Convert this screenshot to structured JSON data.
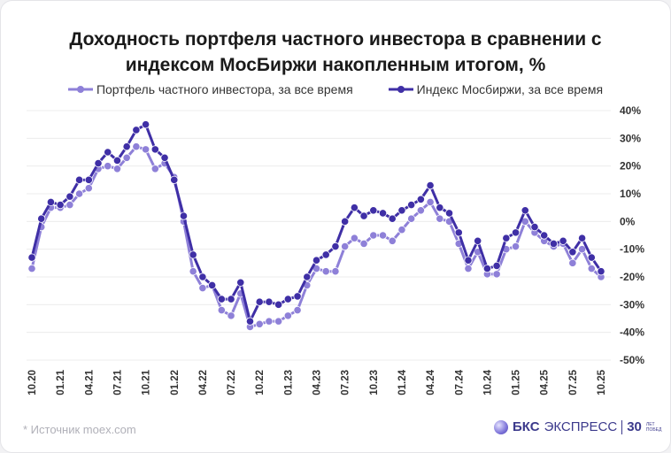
{
  "title_line1": "Доходность портфеля частного инвестора в сравнении с",
  "title_line2": "индексом МосБиржи накопленным итогом, %",
  "footer": {
    "source": "*  Источник moex.com",
    "logo_brand": "БКС",
    "logo_name": "ЭКСПРЕСС",
    "logo_30": "30",
    "logo_sub1": "ЛЕТ",
    "logo_sub2": "ПОБЕД"
  },
  "chart_data": {
    "type": "line",
    "title": "Доходность портфеля частного инвестора в сравнении с индексом МосБиржи накопленным итогом, %",
    "ylim": [
      -50,
      40
    ],
    "yticks": [
      "40%",
      "30%",
      "20%",
      "10%",
      "0%",
      "-10%",
      "-20%",
      "-30%",
      "-40%",
      "-50%"
    ],
    "ytick_values": [
      40,
      30,
      20,
      10,
      0,
      -10,
      -20,
      -30,
      -40,
      -50
    ],
    "xtick_labels": [
      "10.20",
      "01.21",
      "04.21",
      "07.21",
      "10.21",
      "01.22",
      "04.22",
      "07.22",
      "10.22",
      "01.23",
      "04.23",
      "07.23",
      "10.23",
      "01.24",
      "04.24",
      "07.24",
      "10.24",
      "01.25",
      "04.25",
      "07.25",
      "10.25"
    ],
    "grid": true,
    "legend": "top",
    "series": [
      {
        "name": "Портфель частного инвестора, за все время",
        "color": "#8e80d8",
        "values": [
          -17,
          -2,
          5,
          5,
          6,
          10,
          12,
          19,
          20,
          19,
          23,
          27,
          26,
          19,
          21,
          16,
          0,
          -18,
          -24,
          -23,
          -32,
          -34,
          -26,
          -38,
          -37,
          -36,
          -36,
          -34,
          -32,
          -23,
          -17,
          -18,
          -18,
          -9,
          -6,
          -8,
          -5,
          -5,
          -7,
          -3,
          1,
          4,
          7,
          1,
          0,
          -8,
          -17,
          -11,
          -19,
          -19,
          -10,
          -9,
          0,
          -4,
          -7,
          -9,
          -8,
          -15,
          -10,
          -17,
          -20
        ]
      },
      {
        "name": "Индекс Мосбиржи, за все время",
        "color": "#3f2fa6",
        "values": [
          -13,
          1,
          7,
          6,
          9,
          15,
          15,
          21,
          25,
          22,
          27,
          33,
          35,
          26,
          23,
          15,
          2,
          -12,
          -20,
          -23,
          -28,
          -28,
          -22,
          -36,
          -29,
          -29,
          -30,
          -28,
          -27,
          -20,
          -14,
          -12,
          -9,
          0,
          5,
          2,
          4,
          3,
          1,
          4,
          6,
          8,
          13,
          5,
          3,
          -4,
          -14,
          -7,
          -17,
          -16,
          -6,
          -4,
          4,
          -2,
          -5,
          -8,
          -7,
          -11,
          -6,
          -13,
          -18
        ]
      }
    ]
  }
}
